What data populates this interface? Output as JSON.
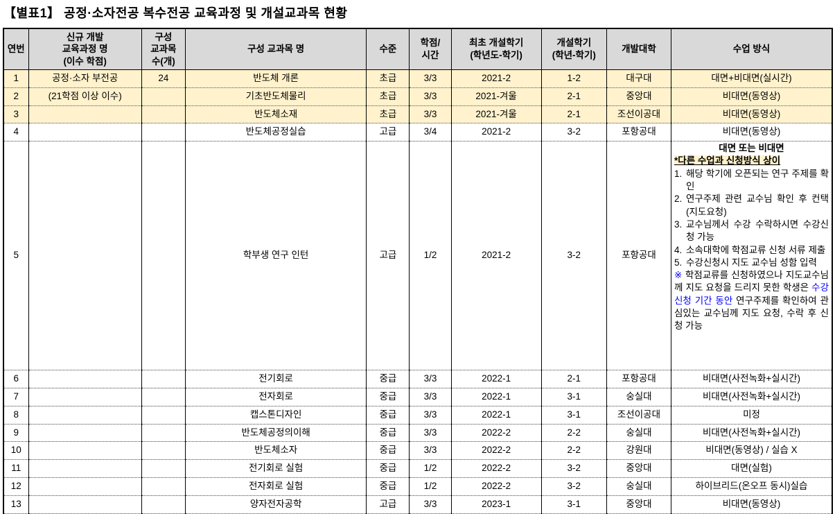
{
  "title": "【별표1】 공정·소자전공 복수전공 교육과정 및 개설교과목 현황",
  "colors": {
    "header_bg": "#D9D9D9",
    "highlight_row_bg": "#FFF2CC",
    "accent_blue": "#0000FF"
  },
  "table": {
    "headers": [
      "연번",
      "신규 개발\n교육과정 명\n(이수 학점)",
      "구성\n교과목\n수(개)",
      "구성 교과목 명",
      "수준",
      "학점/\n시간",
      "최초 개설학기\n(학년도-학기)",
      "개설학기\n(학년-학기)",
      "개발대학",
      "수업 방식"
    ],
    "rows": [
      {
        "no": "1",
        "curriculum": "공정·소자 부전공",
        "count": "24",
        "course": "반도체 개론",
        "level": "초급",
        "credit": "3/3",
        "first_semester": "2021-2",
        "open_semester": "1-2",
        "university": "대구대",
        "method": "대면+비대면(실시간)",
        "highlight": true
      },
      {
        "no": "2",
        "curriculum": "(21학점 이상 이수)",
        "count": "",
        "course": "기초반도체물리",
        "level": "초급",
        "credit": "3/3",
        "first_semester": "2021-겨울",
        "open_semester": "2-1",
        "university": "중앙대",
        "method": "비대면(동영상)",
        "highlight": true
      },
      {
        "no": "3",
        "curriculum": "",
        "count": "",
        "course": "반도체소재",
        "level": "초급",
        "credit": "3/3",
        "first_semester": "2021-겨울",
        "open_semester": "2-1",
        "university": "조선이공대",
        "method": "비대면(동영상)",
        "highlight": true
      },
      {
        "no": "4",
        "curriculum": "",
        "count": "",
        "course": "반도체공정실습",
        "level": "고급",
        "credit": "3/4",
        "first_semester": "2021-2",
        "open_semester": "3-2",
        "university": "포항공대",
        "method": "비대면(동영상)",
        "highlight": false
      },
      {
        "no": "5",
        "curriculum": "",
        "count": "",
        "course": "학부생 연구 인턴",
        "level": "고급",
        "credit": "1/2",
        "first_semester": "2021-2",
        "open_semester": "3-2",
        "university": "포항공대",
        "method": "",
        "method_special": true,
        "highlight": false
      },
      {
        "no": "6",
        "curriculum": "",
        "count": "",
        "course": "전기회로",
        "level": "중급",
        "credit": "3/3",
        "first_semester": "2022-1",
        "open_semester": "2-1",
        "university": "포항공대",
        "method": "비대면(사전녹화+실시간)",
        "highlight": false
      },
      {
        "no": "7",
        "curriculum": "",
        "count": "",
        "course": "전자회로",
        "level": "중급",
        "credit": "3/3",
        "first_semester": "2022-1",
        "open_semester": "3-1",
        "university": "숭실대",
        "method": "비대면(사전녹화+실시간)",
        "highlight": false
      },
      {
        "no": "8",
        "curriculum": "",
        "count": "",
        "course": "캡스톤디자인",
        "level": "중급",
        "credit": "3/3",
        "first_semester": "2022-1",
        "open_semester": "3-1",
        "university": "조선이공대",
        "method": "미정",
        "highlight": false
      },
      {
        "no": "9",
        "curriculum": "",
        "count": "",
        "course": "반도체공정의이해",
        "level": "중급",
        "credit": "3/3",
        "first_semester": "2022-2",
        "open_semester": "2-2",
        "university": "숭실대",
        "method": "비대면(사전녹화+실시간)",
        "highlight": false
      },
      {
        "no": "10",
        "curriculum": "",
        "count": "",
        "course": "반도체소자",
        "level": "중급",
        "credit": "3/3",
        "first_semester": "2022-2",
        "open_semester": "2-2",
        "university": "강원대",
        "method": "비대면(동영상) / 실습 X",
        "highlight": false
      },
      {
        "no": "11",
        "curriculum": "",
        "count": "",
        "course": "전기회로 실험",
        "level": "중급",
        "credit": "1/2",
        "first_semester": "2022-2",
        "open_semester": "3-2",
        "university": "중앙대",
        "method": "대면(실험)",
        "highlight": false
      },
      {
        "no": "12",
        "curriculum": "",
        "count": "",
        "course": "전자회로 실험",
        "level": "중급",
        "credit": "1/2",
        "first_semester": "2022-2",
        "open_semester": "3-2",
        "university": "숭실대",
        "method": "하이브리드(온오프 동시)실습",
        "highlight": false
      },
      {
        "no": "13",
        "curriculum": "",
        "count": "",
        "course": "양자전자공학",
        "level": "고급",
        "credit": "3/3",
        "first_semester": "2023-1",
        "open_semester": "3-1",
        "university": "중앙대",
        "method": "비대면(동영상)",
        "highlight": false
      }
    ],
    "special_method": {
      "line1": "대면 또는 비대면",
      "line2": "*다른 수업과 신청방식 상이",
      "steps": [
        {
          "no": "1.",
          "text": "해당 학기에 오픈되는 연구 주제를 확인"
        },
        {
          "no": "2.",
          "text": "연구주제 관련 교수님 확인 후 컨택(지도요청)"
        },
        {
          "no": "3.",
          "text": "교수님께서 수강 수락하시면 수강신청 가능"
        },
        {
          "no": "4.",
          "text": "소속대학에 학점교류 신청 서류 제출"
        },
        {
          "no": "5.",
          "text": "수강신청시 지도 교수님 성함 입력"
        }
      ],
      "note_marker": "※",
      "note_part1": " 학점교류를 신청하였으나 지도교수님께 지도 요청을 드리지 못한 학생은 ",
      "note_blue": "수강신청 기간 동안",
      "note_part2": " 연구주제를 확인하여 관심있는 교수님께 지도 요청, 수락 후 신청 가능"
    }
  }
}
